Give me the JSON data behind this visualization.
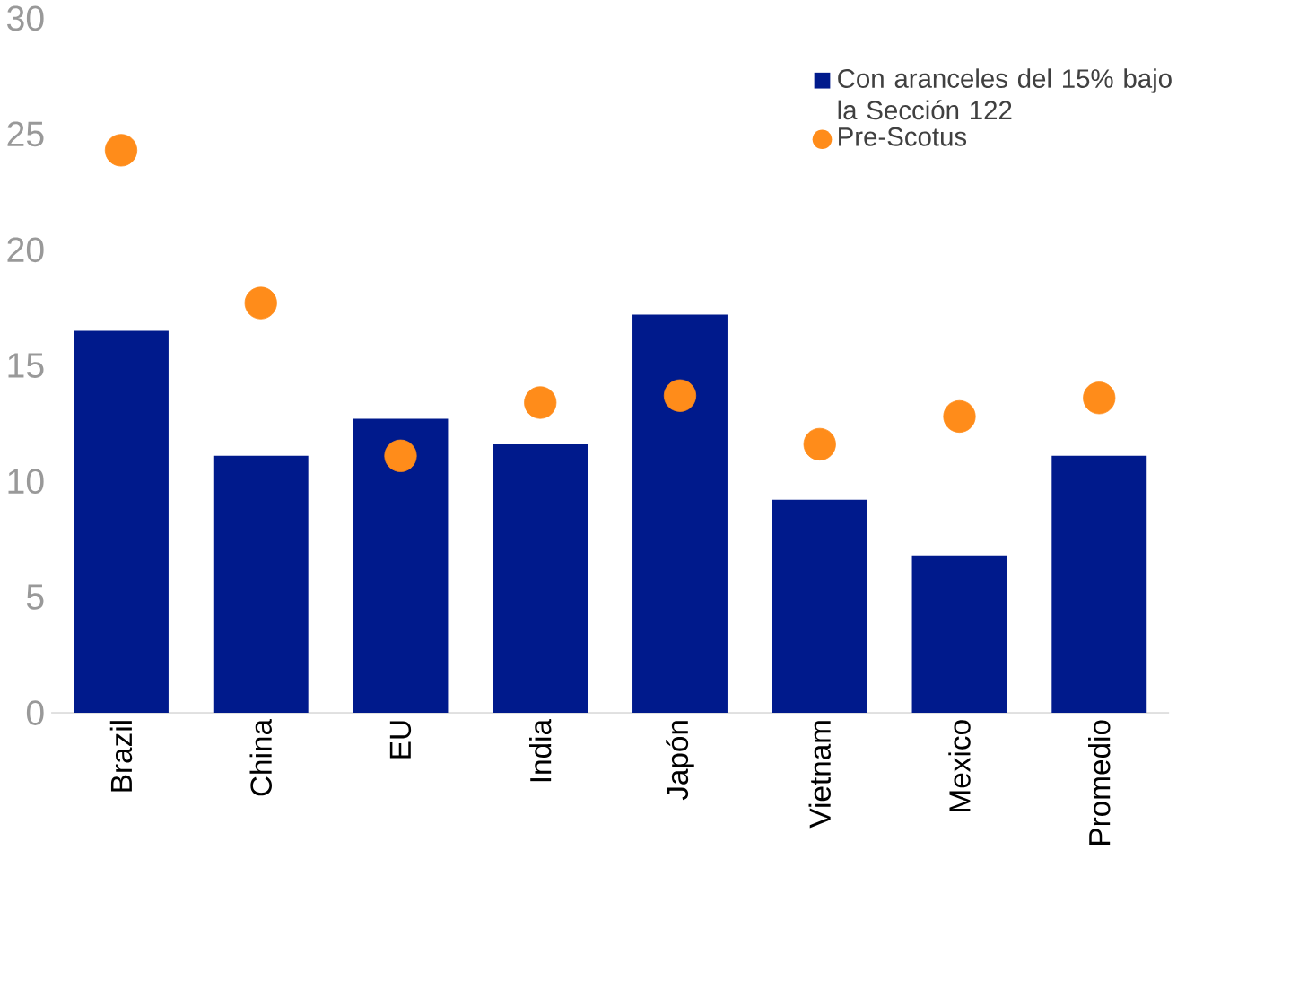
{
  "chart_data": {
    "type": "bar",
    "categories": [
      "Brazil",
      "China",
      "EU",
      "India",
      "Japón",
      "Vietnam",
      "Mexico",
      "Promedio"
    ],
    "series": [
      {
        "name": "Con aranceles del 15% bajo la Sección 122",
        "color": "#001a8c",
        "values": [
          16.5,
          11.1,
          12.7,
          11.6,
          17.2,
          9.2,
          6.8,
          11.1
        ]
      },
      {
        "name": "Pre-Scotus",
        "type": "scatter",
        "color": "#ff8c1a",
        "marker": "circle",
        "x": [
          "Brazil",
          "China",
          "EU",
          "India",
          "Japón",
          "Vietnam",
          "Mexico",
          "Promedio"
        ],
        "values": [
          24.3,
          17.7,
          11.1,
          13.4,
          13.7,
          11.6,
          12.8,
          13.6
        ]
      }
    ],
    "ylim": [
      0,
      30
    ],
    "yticks": [
      0,
      5,
      10,
      15,
      20,
      25,
      30
    ],
    "grid": false,
    "legend": "top right"
  }
}
